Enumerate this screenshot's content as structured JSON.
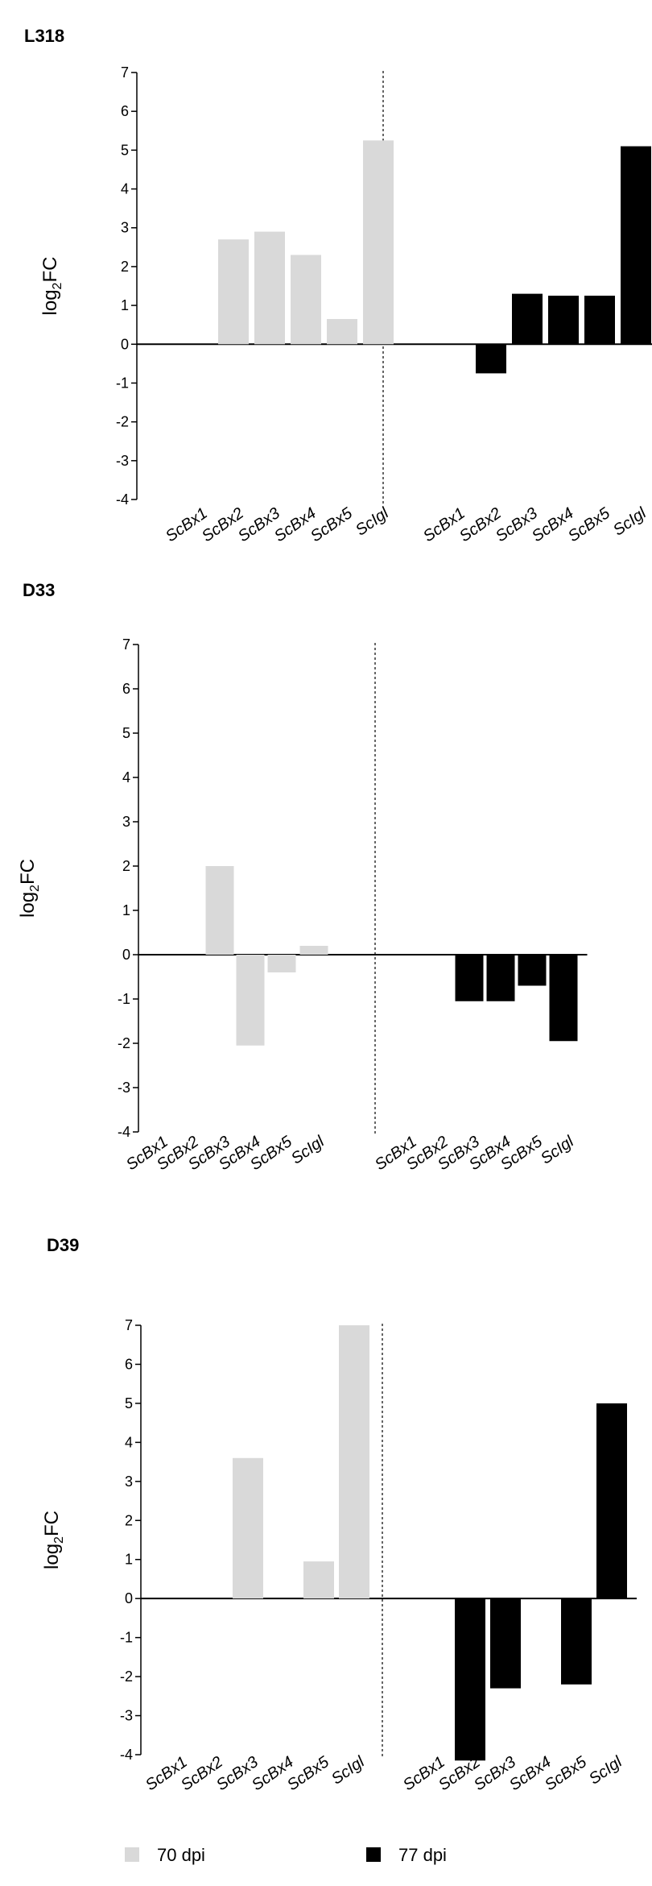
{
  "chart_data": [
    {
      "type": "bar",
      "title": "L318",
      "ylabel": "log2FC",
      "ylim": [
        -4,
        7
      ],
      "yticks": [
        7,
        6,
        5,
        4,
        3,
        2,
        1,
        0,
        -1,
        -2,
        -3,
        -4
      ],
      "groups": [
        {
          "series": "70 dpi",
          "categories": [
            "ScBx1",
            "ScBx2",
            "ScBx3",
            "ScBx4",
            "ScBx5",
            "ScIgl"
          ],
          "values": [
            0,
            2.7,
            2.9,
            2.3,
            0.65,
            5.25
          ]
        },
        {
          "series": "77 dpi",
          "categories": [
            "ScBx1",
            "ScBx2",
            "ScBx3",
            "ScBx4",
            "ScBx5",
            "ScIgl"
          ],
          "values": [
            0,
            -0.75,
            1.3,
            1.25,
            1.25,
            5.1
          ]
        }
      ]
    },
    {
      "type": "bar",
      "title": "D33",
      "ylabel": "log2FC",
      "ylim": [
        -4,
        7
      ],
      "yticks": [
        7,
        6,
        5,
        4,
        3,
        2,
        1,
        0,
        -1,
        -2,
        -3,
        -4
      ],
      "groups": [
        {
          "series": "70 dpi",
          "categories": [
            "ScBx1",
            "ScBx2",
            "ScBx3",
            "ScBx4",
            "ScBx5",
            "ScIgl"
          ],
          "values": [
            0,
            0,
            2.0,
            -2.05,
            -0.4,
            0.2
          ]
        },
        {
          "series": "77 dpi",
          "categories": [
            "ScBx1",
            "ScBx2",
            "ScBx3",
            "ScBx4",
            "ScBx5",
            "ScIgl"
          ],
          "values": [
            0,
            0,
            -1.05,
            -1.05,
            -0.7,
            -1.95
          ]
        }
      ]
    },
    {
      "type": "bar",
      "title": "D39",
      "ylabel": "log2FC",
      "ylim": [
        -4,
        7
      ],
      "yticks": [
        7,
        6,
        5,
        4,
        3,
        2,
        1,
        0,
        -1,
        -2,
        -3,
        -4
      ],
      "groups": [
        {
          "series": "70 dpi",
          "categories": [
            "ScBx1",
            "ScBx2",
            "ScBx3",
            "ScBx4",
            "ScBx5",
            "ScIgl"
          ],
          "values": [
            0,
            0,
            3.6,
            0,
            0.95,
            7.0
          ]
        },
        {
          "series": "77 dpi",
          "categories": [
            "ScBx1",
            "ScBx2",
            "ScBx3",
            "ScBx4",
            "ScBx5",
            "ScIgl"
          ],
          "values": [
            0,
            -4.15,
            -2.3,
            0,
            -2.2,
            5.0
          ]
        }
      ]
    }
  ],
  "legend": {
    "placement": "bottom",
    "items": [
      {
        "label": "70 dpi",
        "color": "#d9d9d9"
      },
      {
        "label": "77 dpi",
        "color": "#000000"
      }
    ]
  },
  "colors": {
    "series_70": "#d9d9d9",
    "series_77": "#000000"
  }
}
